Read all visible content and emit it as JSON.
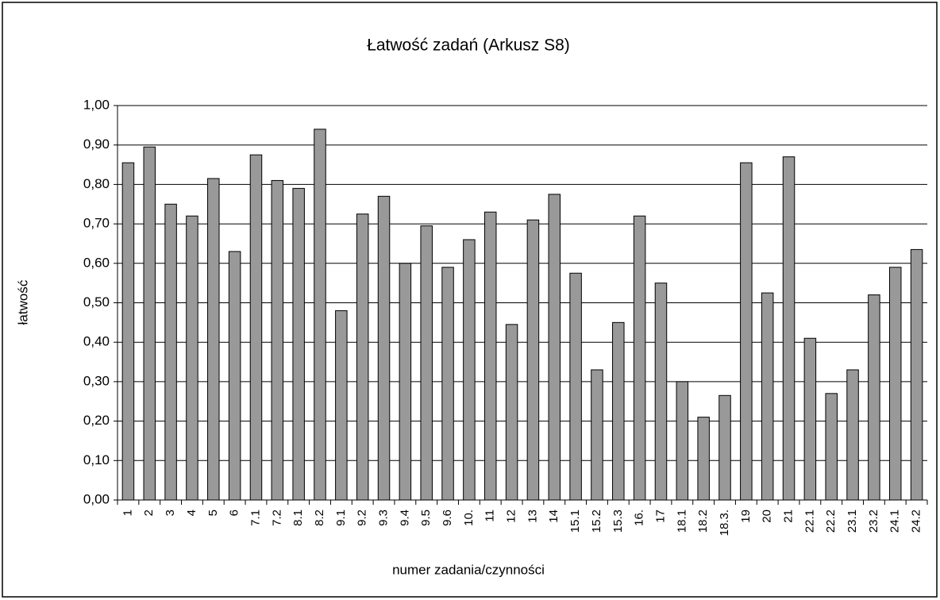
{
  "chart_data": {
    "type": "bar",
    "title": "Łatwość zadań (Arkusz S8)",
    "x_label": "numer zadania/czynności",
    "y_label": "łatwość",
    "categories": [
      "1",
      "2",
      "3",
      "4",
      "5",
      "6",
      "7.1",
      "7.2",
      "8.1",
      "8.2",
      "9.1",
      "9.2",
      "9.3",
      "9.4",
      "9.5",
      "9.6",
      "10.",
      "11",
      "12",
      "13",
      "14",
      "15.1",
      "15.2",
      "15.3",
      "16.",
      "17",
      "18.1",
      "18.2",
      "18.3.",
      "19",
      "20",
      "21",
      "22.1",
      "22.2",
      "23.1",
      "23.2",
      "24.1",
      "24.2"
    ],
    "values": [
      0.855,
      0.895,
      0.75,
      0.72,
      0.815,
      0.63,
      0.875,
      0.81,
      0.79,
      0.94,
      0.48,
      0.725,
      0.77,
      0.6,
      0.695,
      0.59,
      0.66,
      0.73,
      0.445,
      0.71,
      0.775,
      0.575,
      0.33,
      0.45,
      0.72,
      0.55,
      0.3,
      0.21,
      0.265,
      0.855,
      0.525,
      0.87,
      0.41,
      0.27,
      0.33,
      0.52,
      0.59,
      0.635
    ],
    "color": "#999999",
    "ylim": [
      0,
      1
    ],
    "yticks": [
      {
        "value": 0,
        "label": "0,00"
      },
      {
        "value": 0.1,
        "label": "0,10"
      },
      {
        "value": 0.2,
        "label": "0,20"
      },
      {
        "value": 0.3,
        "label": "0,30"
      },
      {
        "value": 0.4,
        "label": "0,40"
      },
      {
        "value": 0.5,
        "label": "0,50"
      },
      {
        "value": 0.6,
        "label": "0,60"
      },
      {
        "value": 0.7,
        "label": "0,70"
      },
      {
        "value": 0.8,
        "label": "0,80"
      },
      {
        "value": 0.9,
        "label": "0,90"
      },
      {
        "value": 1,
        "label": "1,00"
      }
    ],
    "grid": true
  }
}
